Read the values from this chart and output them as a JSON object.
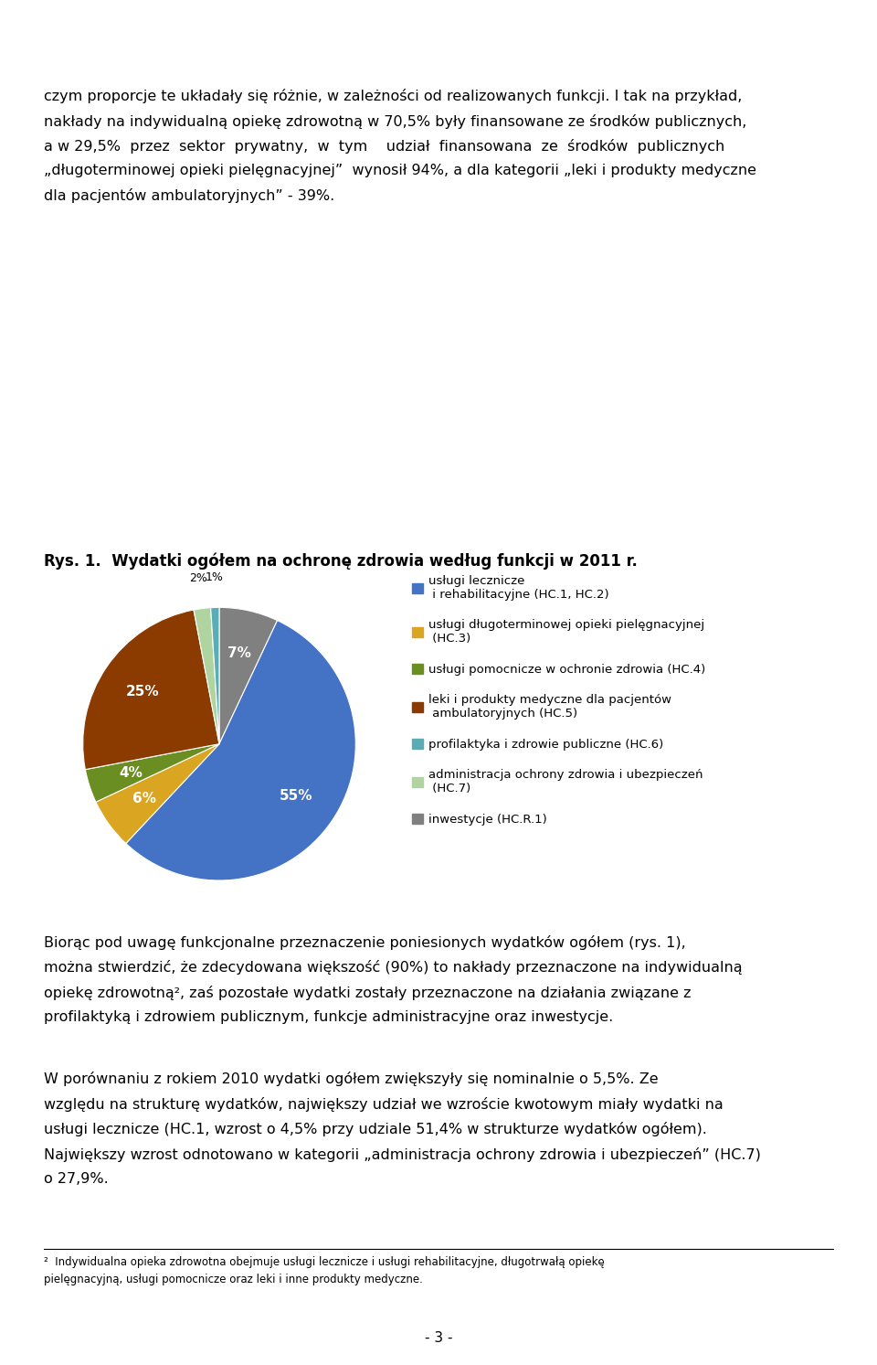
{
  "title": "Rys. 1.  Wydatki ogółem na ochronę zdrowia według funkcji w 2011 r.",
  "body_text_top": "czym proporcje te układały się różnie, w zależności od realizowanych funkcji. I tak na przykład,\nnakłady na indywidualną opiekę zdrowotną w 70,5% były finansowane ze środków publicznych,\na w 29,5%  przez  sektor  prywatny,  w  tym    udział  finansowana  ze  środków  publicznych\n„długoterminowej opieki pielęgnacyjnej”  wynosił 94%, a dla kategorii „leki i produkty medyczne\ndla pacjentów ambulatoryjnych” - 39%.",
  "slices_ordered": [
    7,
    55,
    6,
    4,
    25,
    2,
    1
  ],
  "colors_ordered": [
    "#808080",
    "#4472C4",
    "#DAA520",
    "#6B8E23",
    "#8B3A00",
    "#B0D4A0",
    "#5BADB5"
  ],
  "pct_labels": [
    "7%",
    "55%",
    "6%",
    "4%",
    "25%",
    "2%",
    "1%"
  ],
  "legend_entries": [
    {
      "color": "#4472C4",
      "label": "usługi lecznicze\n i rehabilitacyjne (HC.1, HC.2)"
    },
    {
      "color": "#DAA520",
      "label": "usługi długoterminowej opieki pielęgnacyjnej\n (HC.3)"
    },
    {
      "color": "#6B8E23",
      "label": "usługi pomocnicze w ochronie zdrowia (HC.4)"
    },
    {
      "color": "#8B3A00",
      "label": "leki i produkty medyczne dla pacjentów\n ambulatoryjnych (HC.5)"
    },
    {
      "color": "#5BADB5",
      "label": "profilaktyka i zdrowie publiczne (HC.6)"
    },
    {
      "color": "#B0D4A0",
      "label": "administracja ochrony zdrowia i ubezpieczeń\n (HC.7)"
    },
    {
      "color": "#808080",
      "label": "inwestycje (HC.R.1)"
    }
  ],
  "body_text_bottom": "Biorąc pod uwagę funkcjonalne przeznaczenie poniesionych wydatków ogółem (rys. 1),\nmożna stwierdzić, że zdecydowana większość (90%) to nakłady przeznaczone na indywidualną\nopiekę zdrowotną², zaś pozostałe wydatki zostały przeznaczone na działania związane z\nprofilaktyką i zdrowiem publicznym, funkcje administracyjne oraz inwestycje.",
  "body_text_bottom2": "W porównaniu z rokiem 2010 wydatki ogółem zwiększyły się nominalnie o 5,5%. Ze\nwzględu na strukturę wydatków, największy udział we wzroście kwotowym miały wydatki na\nusługi lecznicze (HC.1, wzrost o 4,5% przy udziale 51,4% w strukturze wydatków ogółem).\nNajwiększy wzrost odnotowano w kategorii „administracja ochrony zdrowia i ubezpieczeń” (HC.7)\no 27,9%.",
  "footnote": "²  Indywidualna opieka zdrowotna obejmuje usługi lecznicze i usługi rehabilitacyjne, długotrwałą opiekę\npielęgnacyjną, usługi pomocnicze oraz leki i inne produkty medyczne.",
  "page_num": "- 3 -"
}
